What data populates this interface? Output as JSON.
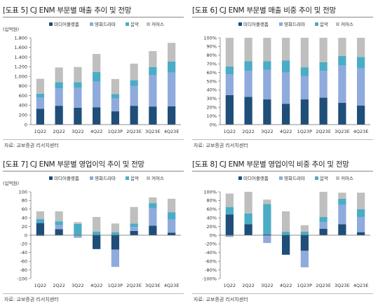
{
  "series_colors": [
    "#1f4e79",
    "#8faadc",
    "#4bacc6",
    "#bfbfbf"
  ],
  "chart_data": [
    {
      "type": "bar",
      "stacked": true,
      "title": "[도표 5] CJ ENM 부문별 매출 추이 및 전망",
      "unit_label": "(십억원)",
      "source": "자료: 교보증권 리서치센터",
      "categories": [
        "1Q22",
        "2Q22",
        "3Q22",
        "4Q22",
        "1Q23P",
        "2Q23E",
        "3Q23E",
        "4Q23E"
      ],
      "ylim": [
        0,
        1800
      ],
      "yticks": [
        0,
        200,
        400,
        600,
        800,
        1000,
        1200,
        1400,
        1600,
        1800
      ],
      "ytick_labels": [
        "0",
        "200",
        "400",
        "600",
        "800",
        "1,000",
        "1,200",
        "1,400",
        "1,600",
        "1,800"
      ],
      "legend_position": "top",
      "series": [
        {
          "name": "미디어플랫폼",
          "values": [
            330,
            390,
            350,
            360,
            275,
            390,
            375,
            380
          ]
        },
        {
          "name": "영화드라마",
          "values": [
            230,
            360,
            410,
            530,
            270,
            410,
            650,
            700
          ]
        },
        {
          "name": "음악",
          "values": [
            80,
            130,
            120,
            200,
            90,
            120,
            170,
            230
          ]
        },
        {
          "name": "커머스",
          "values": [
            310,
            305,
            315,
            375,
            310,
            345,
            330,
            385
          ]
        }
      ]
    },
    {
      "type": "bar",
      "stacked": true,
      "title": "[도표 6] CJ ENM 부문별 매출 비중 추이 및 전망",
      "source": "자료: 교보증권 리서치센터",
      "categories": [
        "1Q22",
        "2Q22",
        "3Q22",
        "4Q22",
        "1Q23P",
        "2Q23E",
        "3Q23E",
        "4Q23E"
      ],
      "ylim": [
        0,
        100
      ],
      "yticks": [
        0,
        10,
        20,
        30,
        40,
        50,
        60,
        70,
        80,
        90,
        100
      ],
      "ytick_labels": [
        "0%",
        "10%",
        "20%",
        "30%",
        "40%",
        "50%",
        "60%",
        "70%",
        "80%",
        "90%",
        "100%"
      ],
      "legend_position": "top",
      "series": [
        {
          "name": "미디어플랫폼",
          "values": [
            34,
            32,
            29,
            24,
            29,
            31,
            25,
            22
          ]
        },
        {
          "name": "영화드라마",
          "values": [
            24,
            30,
            34,
            36,
            27,
            31,
            43,
            43
          ]
        },
        {
          "name": "음악",
          "values": [
            9,
            11,
            10,
            14,
            10,
            10,
            11,
            13
          ]
        },
        {
          "name": "커머스",
          "values": [
            33,
            27,
            27,
            26,
            34,
            28,
            21,
            22
          ]
        }
      ]
    },
    {
      "type": "bar",
      "stacked": true,
      "title": "[도표 7] CJ ENM 부문별 영업이익 추이 및 전망",
      "unit_label": "(십억원)",
      "source": "자료: 교보증권 리서치센터",
      "categories": [
        "1Q22",
        "2Q22",
        "3Q22",
        "4Q22",
        "1Q23P",
        "2Q23E",
        "3Q23E",
        "4Q23E"
      ],
      "ylim": [
        -100,
        100
      ],
      "yticks": [
        -100,
        -80,
        -60,
        -40,
        -20,
        0,
        20,
        40,
        60,
        80,
        100
      ],
      "ytick_labels": [
        "-100",
        "-80",
        "-60",
        "-40",
        "-20",
        "0",
        "20",
        "40",
        "60",
        "80",
        "100"
      ],
      "legend_position": "top",
      "series": [
        {
          "name": "미디어플랫폼",
          "values": [
            28,
            14,
            1,
            -32,
            -33,
            10,
            22,
            6
          ]
        },
        {
          "name": "영화드라마",
          "values": [
            -2,
            9,
            -6,
            0,
            -40,
            9,
            40,
            30
          ]
        },
        {
          "name": "음악",
          "values": [
            9,
            9,
            25,
            8,
            7,
            8,
            12,
            17
          ]
        },
        {
          "name": "커머스",
          "values": [
            18,
            23,
            4,
            34,
            20,
            38,
            13,
            31
          ]
        }
      ]
    },
    {
      "type": "bar",
      "stacked": true,
      "title": "[도표 8] CJ ENM 부문별 영업이익 비중 추이 및 전망",
      "source": "자료: 교보증권 리서치센터",
      "categories": [
        "1Q22",
        "2Q22",
        "3Q22",
        "4Q22",
        "1Q23P",
        "2Q23E",
        "3Q23E",
        "4Q23E"
      ],
      "ylim": [
        -100,
        100
      ],
      "yticks": [
        -100,
        -80,
        -60,
        -40,
        -20,
        0,
        20,
        40,
        60,
        80,
        100
      ],
      "ytick_labels": [
        "-100%",
        "-80%",
        "-60%",
        "-40%",
        "-20%",
        "0%",
        "20%",
        "40%",
        "60%",
        "80%",
        "100%"
      ],
      "legend_position": "top",
      "series": [
        {
          "name": "미디어플랫폼",
          "values": [
            48,
            25,
            2,
            -45,
            -36,
            15,
            25,
            7
          ]
        },
        {
          "name": "영화드라마",
          "values": [
            -4,
            0,
            -18,
            0,
            -38,
            15,
            45,
            35
          ]
        },
        {
          "name": "음악",
          "values": [
            17,
            25,
            70,
            8,
            8,
            12,
            14,
            18
          ]
        },
        {
          "name": "커머스",
          "values": [
            31,
            50,
            10,
            47,
            15,
            58,
            14,
            38
          ]
        }
      ]
    }
  ]
}
